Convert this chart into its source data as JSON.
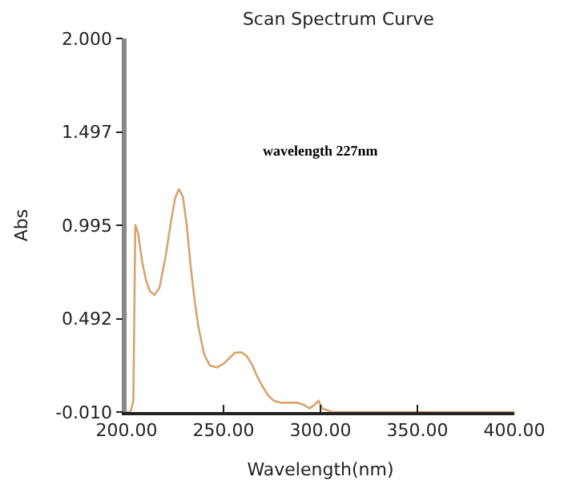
{
  "chart_data": {
    "type": "line",
    "title": "Scan Spectrum Curve",
    "xlabel": "Wavelength(nm)",
    "ylabel": "Abs",
    "annotations": [
      "wavelength 227nm"
    ],
    "x": [
      200,
      202,
      203.5,
      204.5,
      206,
      208,
      210,
      212,
      214.4,
      217,
      220,
      223,
      225,
      227,
      229,
      231,
      233,
      235,
      237,
      240,
      243,
      246.6,
      250,
      253,
      256,
      259.5,
      262,
      264.5,
      267,
      270,
      273,
      276,
      280,
      284,
      288,
      291,
      294.5,
      297,
      299,
      301,
      303.5,
      306,
      320,
      350,
      380,
      400
    ],
    "series": [
      {
        "color": "#d8a46c",
        "values": [
          -0.01,
          -0.01,
          0.05,
          1.0,
          0.95,
          0.8,
          0.7,
          0.64,
          0.62,
          0.66,
          0.82,
          1.02,
          1.14,
          1.19,
          1.15,
          1.0,
          0.78,
          0.6,
          0.45,
          0.3,
          0.24,
          0.23,
          0.25,
          0.28,
          0.31,
          0.31,
          0.29,
          0.25,
          0.19,
          0.13,
          0.08,
          0.05,
          0.04,
          0.04,
          0.04,
          0.03,
          0.01,
          0.03,
          0.05,
          0.01,
          0.0,
          -0.01,
          -0.01,
          -0.01,
          -0.01,
          -0.01
        ]
      }
    ],
    "xlim": [
      200,
      400
    ],
    "ylim": [
      -0.01,
      2.0
    ],
    "xticks": [
      {
        "value": 200,
        "label": "200.00"
      },
      {
        "value": 250,
        "label": "250.00"
      },
      {
        "value": 300,
        "label": "300.00"
      },
      {
        "value": 350,
        "label": "350.00"
      },
      {
        "value": 400,
        "label": "400.00"
      }
    ],
    "yticks": [
      {
        "value": -0.01,
        "label": "-0.010"
      },
      {
        "value": 0.492,
        "label": "0.492"
      },
      {
        "value": 0.995,
        "label": "0.995"
      },
      {
        "value": 1.497,
        "label": "1.497"
      },
      {
        "value": 2.0,
        "label": "2.000"
      }
    ],
    "marker": "none",
    "line_style": "solid"
  }
}
